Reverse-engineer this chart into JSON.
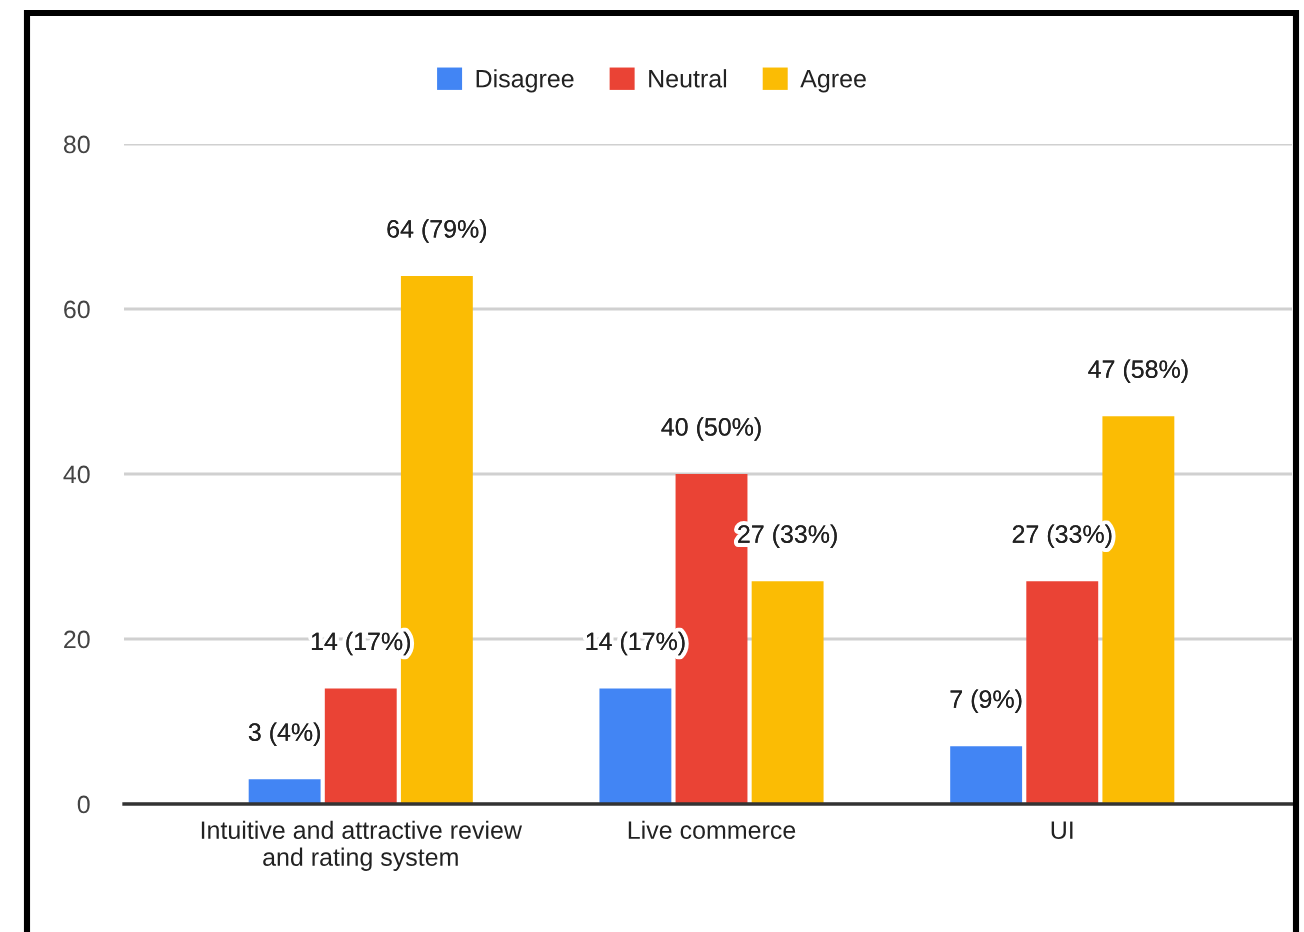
{
  "chart_data": {
    "type": "bar",
    "categories": [
      "Intuitive and attractive review and rating system",
      "Live commerce",
      "UI"
    ],
    "series": [
      {
        "name": "Disagree",
        "color": "#4285f4",
        "values": [
          3,
          14,
          7
        ],
        "value_labels": [
          "3 (4%)",
          "14 (17%)",
          "7 (9%)"
        ]
      },
      {
        "name": "Neutral",
        "color": "#ea4335",
        "values": [
          14,
          40,
          27
        ],
        "value_labels": [
          "14 (17%)",
          "40 (50%)",
          "27 (33%)"
        ]
      },
      {
        "name": "Agree",
        "color": "#fbbc04",
        "values": [
          64,
          27,
          47
        ],
        "value_labels": [
          "64 (79%)",
          "27 (33%)",
          "47 (58%)"
        ]
      }
    ],
    "ylim": [
      0,
      80
    ],
    "yticks": [
      0,
      20,
      40,
      60,
      80
    ],
    "grid": "y",
    "legend": "top"
  }
}
